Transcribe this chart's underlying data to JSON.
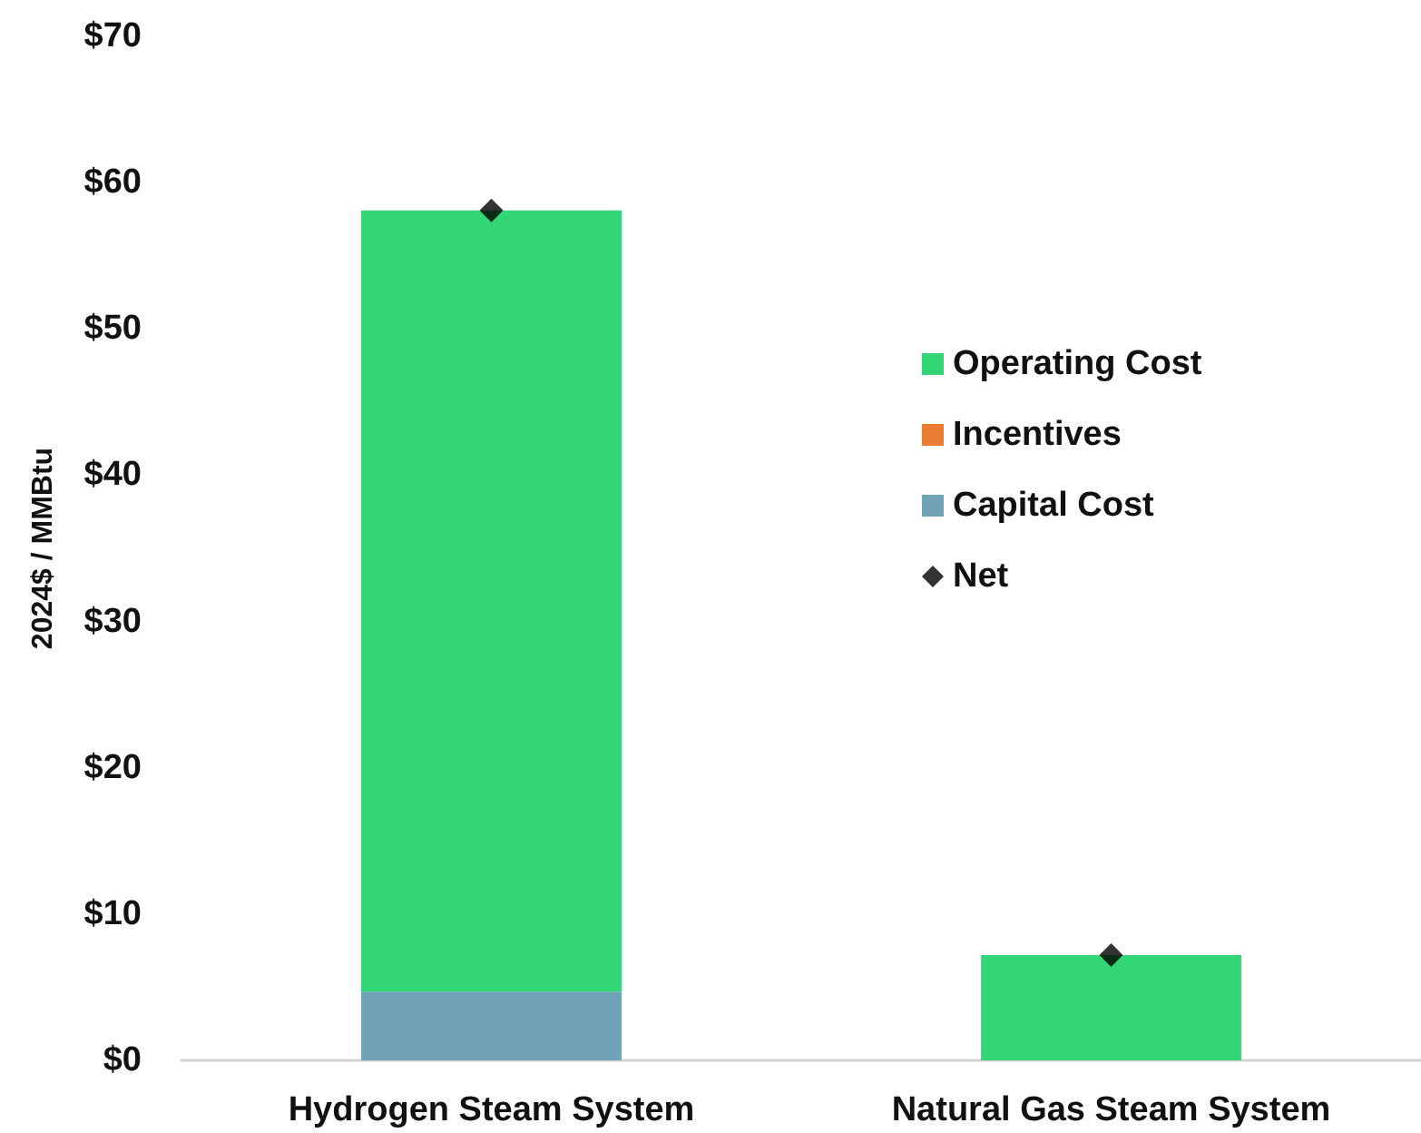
{
  "chart_data": {
    "type": "bar",
    "stacked": true,
    "ylabel": "2024$ / MMBtu",
    "categories": [
      "Hydrogen Steam System",
      "Natural Gas Steam System"
    ],
    "ylim": [
      0,
      70
    ],
    "yticks": [
      {
        "value": 0,
        "label": "$0"
      },
      {
        "value": 10,
        "label": "$10"
      },
      {
        "value": 20,
        "label": "$20"
      },
      {
        "value": 30,
        "label": "$30"
      },
      {
        "value": 40,
        "label": "$40"
      },
      {
        "value": 50,
        "label": "$50"
      },
      {
        "value": 60,
        "label": "$60"
      },
      {
        "value": 70,
        "label": "$70"
      }
    ],
    "grid": false,
    "legend": "right",
    "marker": "diamond",
    "series": [
      {
        "name": "Capital Cost",
        "color": "#70a3b8",
        "values": [
          4.7,
          0
        ]
      },
      {
        "name": "Incentives",
        "color": "#ed7d31",
        "values": [
          0,
          0
        ]
      },
      {
        "name": "Operating Cost",
        "color": "#33d675",
        "values": [
          53.4,
          7.2
        ]
      },
      {
        "name": "Net",
        "type": "scatter",
        "color": "#000000",
        "values": [
          58.1,
          7.2
        ]
      }
    ]
  }
}
